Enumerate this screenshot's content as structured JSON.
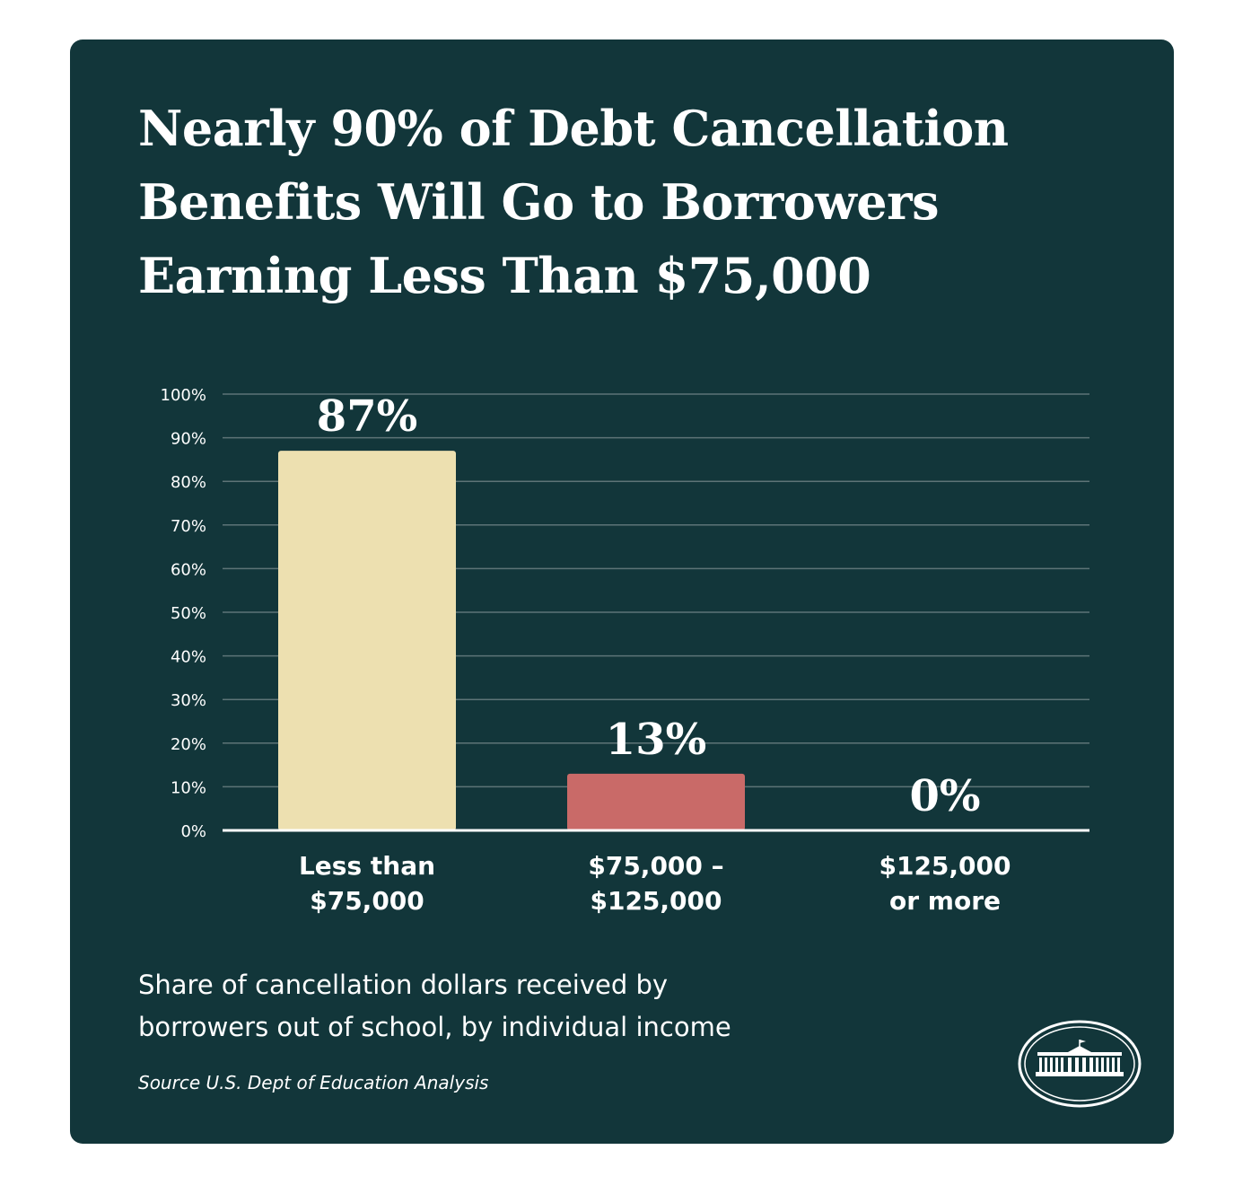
{
  "title_lines": [
    "Nearly 90% of Debt Cancellation",
    "Benefits Will Go to Borrowers",
    "Earning Less Than $75,000"
  ],
  "caption_lines": [
    "Share of cancellation dollars received by",
    "borrowers out of school, by individual income"
  ],
  "source": "Source U.S. Dept of Education Analysis",
  "logo": "white-house-seal-icon",
  "colors": {
    "background": "#12363a",
    "bar_1": "#ede0b0",
    "bar_2": "#c96a68",
    "bar_3": "#c96a68",
    "grid": "#5d7477",
    "text": "#ffffff"
  },
  "chart_data": {
    "type": "bar",
    "categories": [
      [
        "Less than",
        "$75,000"
      ],
      [
        "$75,000 –",
        "$125,000"
      ],
      [
        "$125,000",
        "or more"
      ]
    ],
    "values": [
      87,
      13,
      0
    ],
    "value_labels": [
      "87%",
      "13%",
      "0%"
    ],
    "ylim": [
      0,
      100
    ],
    "yticks": [
      0,
      10,
      20,
      30,
      40,
      50,
      60,
      70,
      80,
      90,
      100
    ],
    "ytick_labels": [
      "0%",
      "10%",
      "20%",
      "30%",
      "40%",
      "50%",
      "60%",
      "70%",
      "80%",
      "90%",
      "100%"
    ],
    "grid": true,
    "legend": "none"
  }
}
